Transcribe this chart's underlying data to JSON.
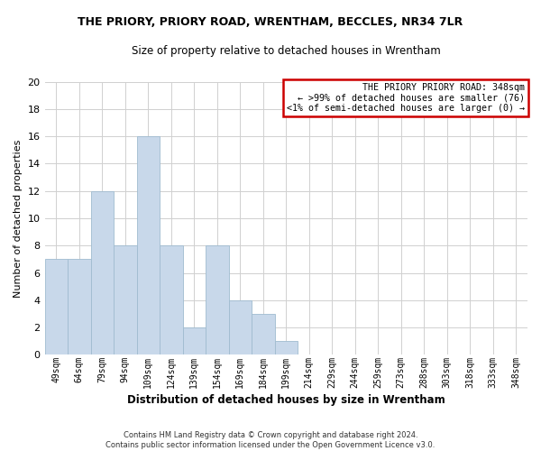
{
  "title": "THE PRIORY, PRIORY ROAD, WRENTHAM, BECCLES, NR34 7LR",
  "subtitle": "Size of property relative to detached houses in Wrentham",
  "xlabel": "Distribution of detached houses by size in Wrentham",
  "ylabel": "Number of detached properties",
  "bar_color": "#c8d8ea",
  "bar_edgecolor": "#a0bcd0",
  "categories": [
    "49sqm",
    "64sqm",
    "79sqm",
    "94sqm",
    "109sqm",
    "124sqm",
    "139sqm",
    "154sqm",
    "169sqm",
    "184sqm",
    "199sqm",
    "214sqm",
    "229sqm",
    "244sqm",
    "259sqm",
    "273sqm",
    "288sqm",
    "303sqm",
    "318sqm",
    "333sqm",
    "348sqm"
  ],
  "values": [
    7,
    7,
    12,
    8,
    16,
    8,
    2,
    8,
    4,
    3,
    1,
    0,
    0,
    0,
    0,
    0,
    0,
    0,
    0,
    0,
    0
  ],
  "ylim": [
    0,
    20
  ],
  "yticks": [
    0,
    2,
    4,
    6,
    8,
    10,
    12,
    14,
    16,
    18,
    20
  ],
  "annotation_title": "THE PRIORY PRIORY ROAD: 348sqm",
  "annotation_line2": "← >99% of detached houses are smaller (76)",
  "annotation_line3": "<1% of semi-detached houses are larger (0) →",
  "annotation_box_color": "#ffffff",
  "annotation_box_edgecolor": "#cc0000",
  "footer_line1": "Contains HM Land Registry data © Crown copyright and database right 2024.",
  "footer_line2": "Contains public sector information licensed under the Open Government Licence v3.0.",
  "grid_color": "#d0d0d0",
  "background_color": "#ffffff"
}
